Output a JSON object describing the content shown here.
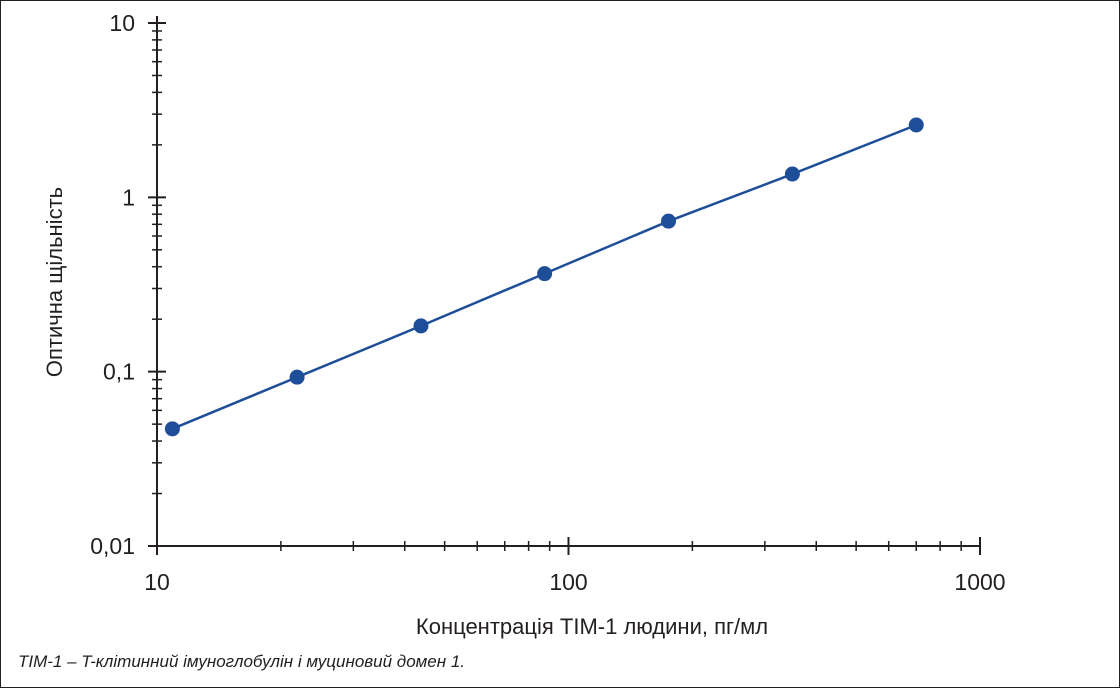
{
  "chart_data": {
    "type": "line",
    "title": "",
    "xlabel": "Концентрація TIM-1 людини, пг/мл",
    "ylabel": "Оптична щільність",
    "x_scale": "log",
    "y_scale": "log",
    "xlim": [
      10,
      1000
    ],
    "ylim": [
      0.01,
      10
    ],
    "x_ticks": [
      10,
      100,
      1000
    ],
    "x_tick_labels": [
      "10",
      "100",
      "1000"
    ],
    "y_ticks": [
      0.01,
      0.1,
      1,
      10
    ],
    "y_tick_labels": [
      "0,01",
      "0,1",
      "1",
      "10"
    ],
    "grid": false,
    "markers": true,
    "color": "#1f4e99",
    "series": [
      {
        "x": [
          10.9,
          21.9,
          43.8,
          87.5,
          175,
          350,
          700
        ],
        "y": [
          0.047,
          0.093,
          0.183,
          0.365,
          0.73,
          1.36,
          2.6
        ]
      }
    ]
  },
  "caption": "TIM-1 – T-клітинний імуноглобулін і муциновий домен 1."
}
